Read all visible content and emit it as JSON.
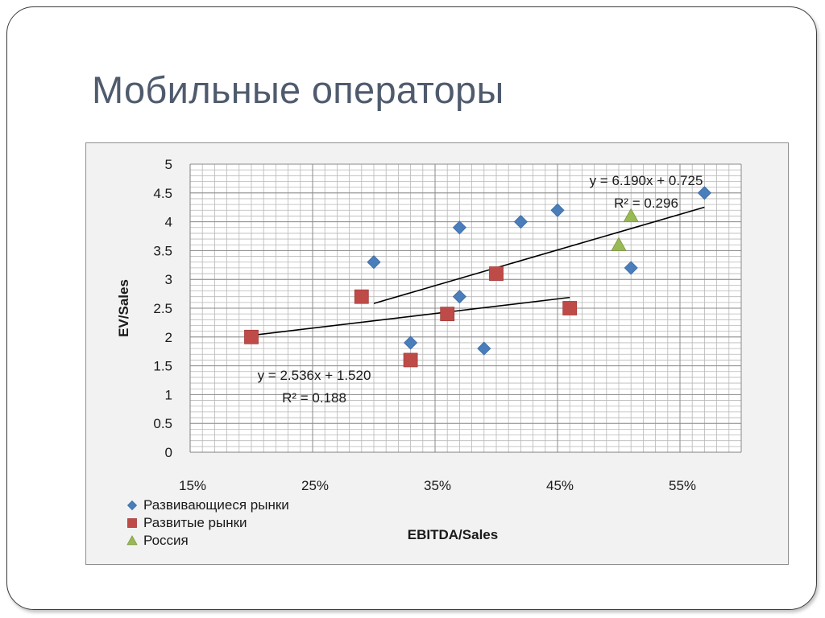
{
  "slide": {
    "title": "Мобильные операторы"
  },
  "chart_data": {
    "type": "scatter",
    "title": "",
    "xlabel": "EBITDA/Sales",
    "ylabel": "EV/Sales",
    "xlim": [
      0.15,
      0.6
    ],
    "ylim": [
      0,
      5
    ],
    "x_ticks": [
      0.15,
      0.25,
      0.35,
      0.45,
      0.55
    ],
    "x_tick_labels": [
      "15%",
      "25%",
      "35%",
      "45%",
      "55%"
    ],
    "y_ticks": [
      0,
      0.5,
      1,
      1.5,
      2,
      2.5,
      3,
      3.5,
      4,
      4.5,
      5
    ],
    "y_tick_labels": [
      "0",
      "0.5",
      "1",
      "1.5",
      "2",
      "2.5",
      "3",
      "3.5",
      "4",
      "4.5",
      "5"
    ],
    "grid": true,
    "legend_position": "bottom-left",
    "series": [
      {
        "name": "Развивающиеся рынки",
        "marker": "diamond",
        "color": "#4a7ebb",
        "points": [
          {
            "x": 0.3,
            "y": 3.3
          },
          {
            "x": 0.33,
            "y": 1.9
          },
          {
            "x": 0.37,
            "y": 3.9
          },
          {
            "x": 0.37,
            "y": 2.7
          },
          {
            "x": 0.39,
            "y": 1.8
          },
          {
            "x": 0.42,
            "y": 4.0
          },
          {
            "x": 0.45,
            "y": 4.2
          },
          {
            "x": 0.51,
            "y": 3.2
          },
          {
            "x": 0.57,
            "y": 4.5
          }
        ],
        "trendline": {
          "x_range": [
            0.3,
            0.57
          ],
          "slope": 6.19,
          "intercept": 0.725,
          "equation": "y = 6.190x + 0.725",
          "r2": "R² = 0.296"
        }
      },
      {
        "name": "Развитые рынки",
        "marker": "square",
        "color": "#be4b48",
        "points": [
          {
            "x": 0.2,
            "y": 2.0
          },
          {
            "x": 0.29,
            "y": 2.7
          },
          {
            "x": 0.33,
            "y": 1.6
          },
          {
            "x": 0.36,
            "y": 2.4
          },
          {
            "x": 0.4,
            "y": 3.1
          },
          {
            "x": 0.46,
            "y": 2.5
          }
        ],
        "trendline": {
          "x_range": [
            0.2,
            0.46
          ],
          "slope": 2.536,
          "intercept": 1.52,
          "equation": "y = 2.536x + 1.520",
          "r2": "R² = 0.188"
        }
      },
      {
        "name": "Россия",
        "marker": "triangle",
        "color": "#98b954",
        "points": [
          {
            "x": 0.5,
            "y": 3.6
          },
          {
            "x": 0.51,
            "y": 4.1
          }
        ]
      }
    ]
  }
}
